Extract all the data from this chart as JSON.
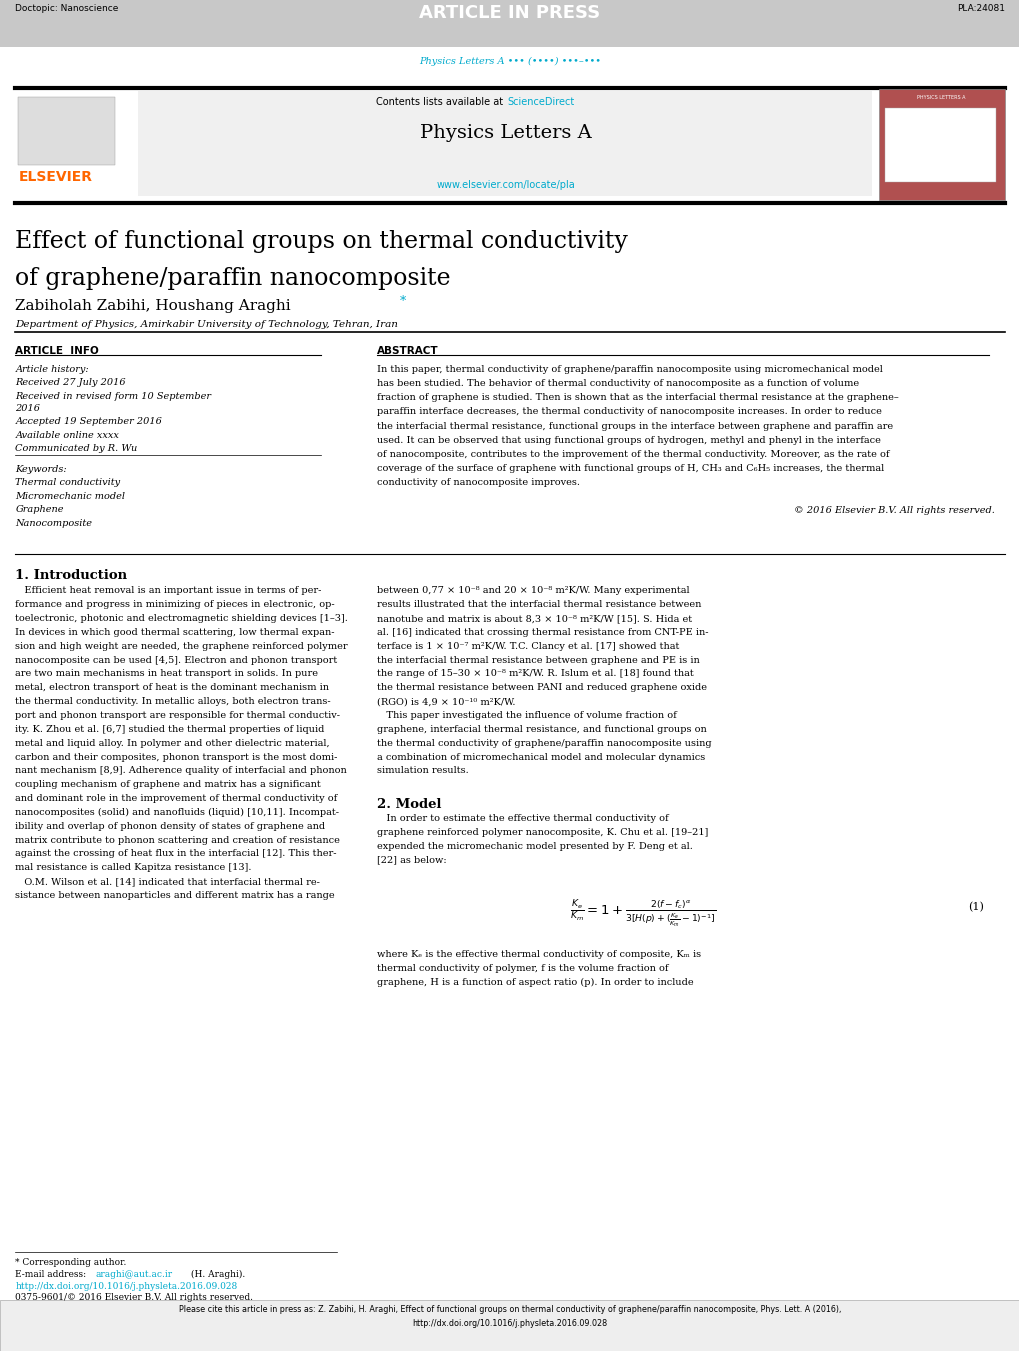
{
  "bg_color": "#ffffff",
  "header_bar_color": "#c8c8c8",
  "header_text_left": "Doctopic: Nanoscience",
  "header_text_center": "ARTICLE IN PRESS",
  "header_text_right": "PLA:24081",
  "journal_ref_text": "Physics Letters A ••• (••••) •••–•••",
  "journal_ref_color": "#00aacc",
  "journal_title": "Physics Letters A",
  "journal_url": "www.elsevier.com/locate/pla",
  "journal_url_color": "#00aacc",
  "contents_text": "Contents lists available at ",
  "sciencedirect_text": "ScienceDirect",
  "sciencedirect_color": "#00aacc",
  "paper_title_line1": "Effect of functional groups on thermal conductivity",
  "paper_title_line2": "of graphene/paraffin nanocomposite",
  "authors": "Zabiholah Zabihi, Houshang Araghi",
  "authors_star": " *",
  "affiliation": "Department of Physics, Amirkabir University of Technology, Tehran, Iran",
  "article_info_header": "ARTICLE  INFO",
  "abstract_header": "ABSTRACT",
  "article_history_label": "Article history:",
  "received1": "Received 27 July 2016",
  "received2": "Received in revised form 10 September",
  "received2b": "2016",
  "accepted": "Accepted 19 September 2016",
  "available": "Available online xxxx",
  "communicated": "Communicated by R. Wu",
  "keywords_label": "Keywords:",
  "keyword1": "Thermal conductivity",
  "keyword2": "Micromechanic model",
  "keyword3": "Graphene",
  "keyword4": "Nanocomposite",
  "copyright_text": "© 2016 Elsevier B.V. All rights reserved.",
  "intro_header": "1. Introduction",
  "section2_header": "2. Model",
  "eq_number": "(1)",
  "footnote_text1": "* Corresponding author.",
  "footnote_text3": "http://dx.doi.org/10.1016/j.physleta.2016.09.028",
  "footnote_text4": "0375-9601/© 2016 Elsevier B.V. All rights reserved.",
  "elsevier_color": "#ff6600",
  "cover_bg_color": "#b05050",
  "cite_line1": "Please cite this article in press as: Z. Zabihi, H. Araghi, Effect of functional groups on thermal conductivity of graphene/paraffin nanocomposite, Phys. Lett. A (2016),",
  "cite_line2": "http://dx.doi.org/10.1016/j.physleta.2016.09.028"
}
